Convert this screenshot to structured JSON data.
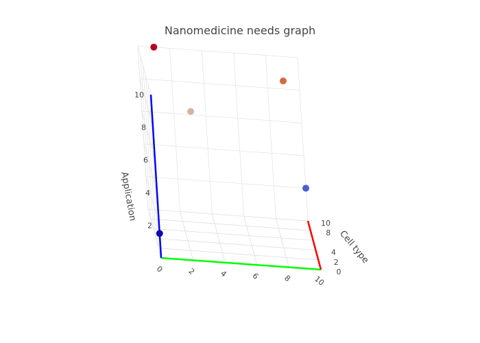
{
  "chart_data": {
    "type": "scatter3d",
    "title": "Nanomedicine needs graph",
    "axes": {
      "x": {
        "label": "",
        "range": [
          0,
          10
        ],
        "ticks": [
          0,
          2,
          4,
          6,
          8,
          10
        ],
        "color": "#00ff00"
      },
      "y": {
        "label": "Cell type",
        "range": [
          0,
          10
        ],
        "ticks": [
          0,
          2,
          4,
          8,
          10
        ],
        "color": "#ff0000"
      },
      "z": {
        "label": "Application",
        "range": [
          0,
          10
        ],
        "ticks": [
          2,
          4,
          6,
          8,
          10
        ],
        "color": "#0000ff"
      }
    },
    "grid": true,
    "points": [
      {
        "x": 0,
        "y": 0,
        "z": 1.5,
        "color": "#0a0aa8"
      },
      {
        "x": 1,
        "y": 10,
        "z": 10,
        "color": "#b2001f"
      },
      {
        "x": 3,
        "y": 9,
        "z": 6.5,
        "color": "#d7b3a1"
      },
      {
        "x": 9,
        "y": 10,
        "z": 8.5,
        "color": "#d6683f"
      },
      {
        "x": 10,
        "y": 10,
        "z": 2,
        "color": "#4a5fd4"
      }
    ]
  }
}
